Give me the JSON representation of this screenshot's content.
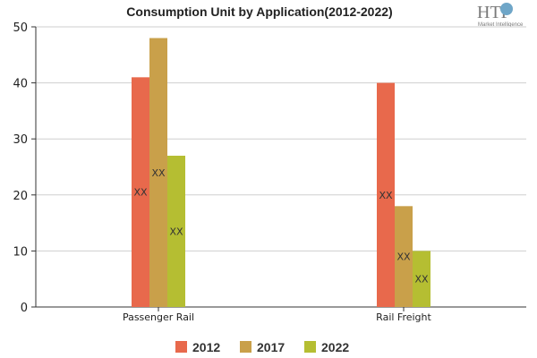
{
  "logo": {
    "text": "HTF",
    "subtext": "Market Intelligence"
  },
  "chart_data": {
    "type": "bar",
    "title": "Consumption Unit by  Application(2012-2022)",
    "xlabel": "",
    "ylabel": "",
    "categories": [
      "Passenger Rail",
      "Rail Freight"
    ],
    "series": [
      {
        "name": "2012",
        "color": "#e8694c",
        "values": [
          41,
          40
        ],
        "labels": [
          "XX",
          "XX"
        ]
      },
      {
        "name": "2017",
        "color": "#c9a04a",
        "values": [
          48,
          18
        ],
        "labels": [
          "XX",
          "XX"
        ]
      },
      {
        "name": "2022",
        "color": "#b5be32",
        "values": [
          27,
          10
        ],
        "labels": [
          "XX",
          "XX"
        ]
      }
    ],
    "ylim": [
      0,
      50
    ],
    "yticks": [
      "0",
      "10",
      "20",
      "30",
      "40",
      "50"
    ],
    "grid": true,
    "legend_position": "bottom"
  }
}
